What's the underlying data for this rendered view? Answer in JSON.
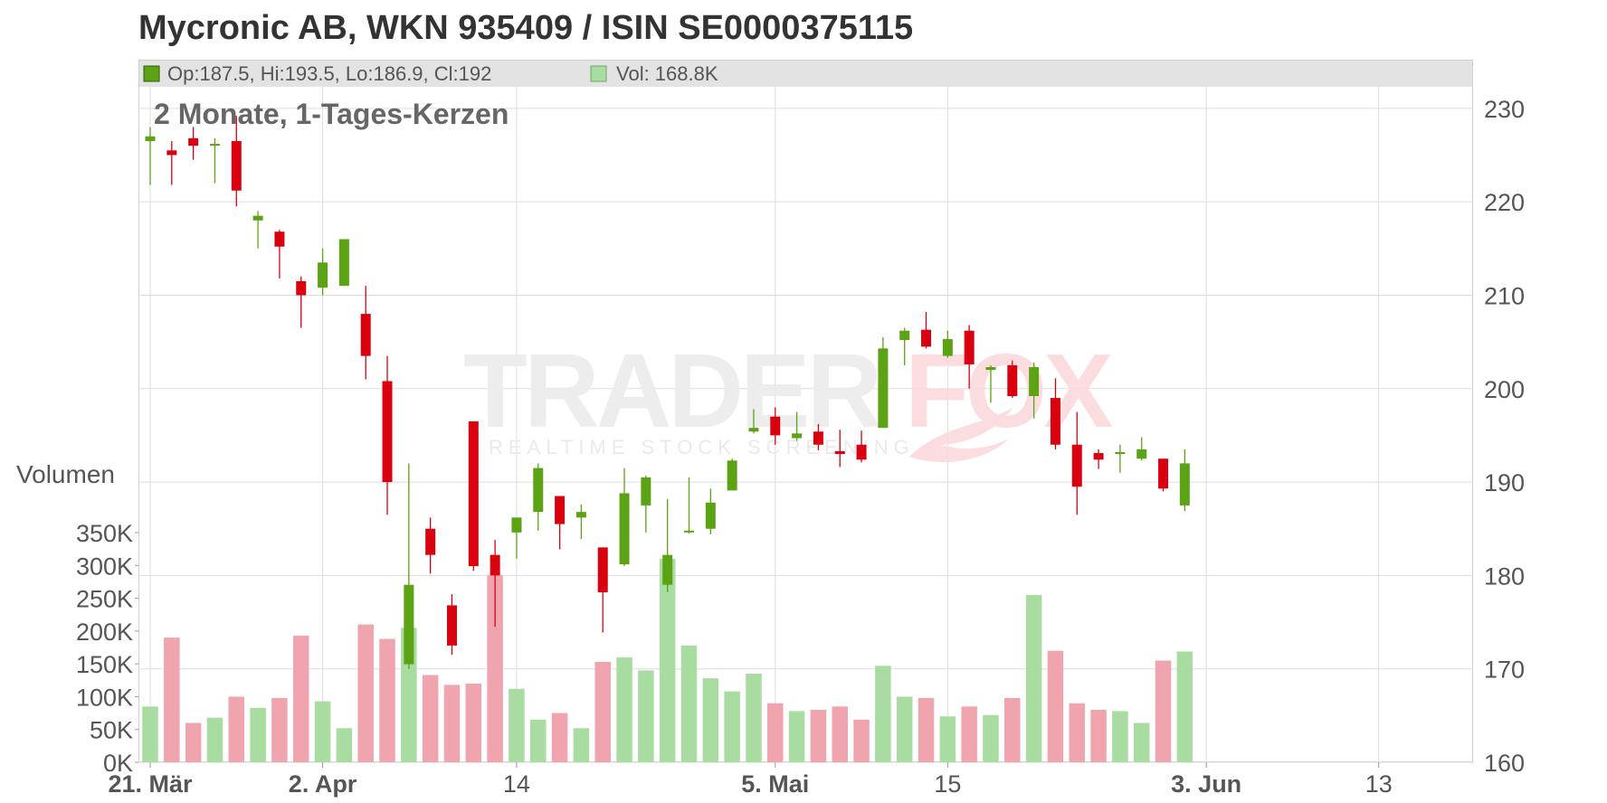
{
  "chart_data": {
    "type": "candlestick",
    "title": "Mycronic AB, WKN 935409 / ISIN SE0000375115",
    "subtitle": "2 Monate, 1-Tages-Kerzen",
    "info_bar": {
      "ohlc_text": "Op:187.5, Hi:193.5, Lo:186.9, Cl:192",
      "volume_text": "Vol: 168.8K"
    },
    "watermark": {
      "brand_left": "TRADER",
      "brand_right": "FOX",
      "tagline": "REALTIME STOCK SCREENING"
    },
    "price_axis": {
      "ticks": [
        "160",
        "170",
        "180",
        "190",
        "200",
        "210",
        "220",
        "230"
      ],
      "range": [
        160,
        232.5
      ]
    },
    "volume_axis": {
      "label": "Volumen",
      "ticks": [
        "0K",
        "50K",
        "100K",
        "150K",
        "200K",
        "250K",
        "300K",
        "350K"
      ],
      "range": [
        0,
        350000
      ]
    },
    "x_axis": {
      "labels": [
        {
          "text": "21. Mär",
          "bold": true,
          "day": 0
        },
        {
          "text": "2. Apr",
          "bold": true,
          "day": 8
        },
        {
          "text": "14",
          "bold": false,
          "day": 17
        },
        {
          "text": "5. Mai",
          "bold": true,
          "day": 29
        },
        {
          "text": "15",
          "bold": false,
          "day": 37
        },
        {
          "text": "3. Jun",
          "bold": true,
          "day": 49
        },
        {
          "text": "13",
          "bold": false,
          "day": 57
        }
      ],
      "total_slots": 62
    },
    "colors": {
      "up": "#5ba315",
      "down": "#d9000f",
      "vol_up": "#a8dca0",
      "vol_down": "#f0a4ae",
      "grid": "#dddddd"
    },
    "candles": [
      {
        "day": 0,
        "open": 226.5,
        "high": 228.0,
        "low": 221.8,
        "close": 227.0,
        "volume": 85000
      },
      {
        "day": 1,
        "open": 225.5,
        "high": 226.5,
        "low": 221.8,
        "close": 225.0,
        "volume": 190000
      },
      {
        "day": 2,
        "open": 226.8,
        "high": 228.0,
        "low": 224.5,
        "close": 226.0,
        "volume": 60000
      },
      {
        "day": 3,
        "open": 226.0,
        "high": 226.8,
        "low": 222.0,
        "close": 226.2,
        "volume": 68000
      },
      {
        "day": 4,
        "open": 226.5,
        "high": 229.2,
        "low": 219.5,
        "close": 221.2,
        "volume": 100000
      },
      {
        "day": 5,
        "open": 218.0,
        "high": 219.0,
        "low": 215.0,
        "close": 218.5,
        "volume": 83000
      },
      {
        "day": 6,
        "open": 216.8,
        "high": 217.0,
        "low": 211.8,
        "close": 215.2,
        "volume": 98000
      },
      {
        "day": 7,
        "open": 211.5,
        "high": 212.0,
        "low": 206.5,
        "close": 210.0,
        "volume": 193000
      },
      {
        "day": 8,
        "open": 210.8,
        "high": 215.0,
        "low": 210.0,
        "close": 213.5,
        "volume": 93000
      },
      {
        "day": 9,
        "open": 211.0,
        "high": 216.0,
        "low": 211.0,
        "close": 216.0,
        "volume": 52000
      },
      {
        "day": 10,
        "open": 208.0,
        "high": 211.0,
        "low": 201.0,
        "close": 203.5,
        "volume": 210000
      },
      {
        "day": 11,
        "open": 200.8,
        "high": 203.5,
        "low": 186.5,
        "close": 190.0,
        "volume": 188000
      },
      {
        "day": 12,
        "open": 170.5,
        "high": 192.0,
        "low": 170.0,
        "close": 179.0,
        "volume": 205000
      },
      {
        "day": 13,
        "open": 185.0,
        "high": 186.2,
        "low": 180.2,
        "close": 182.2,
        "volume": 133000
      },
      {
        "day": 14,
        "open": 176.8,
        "high": 178.0,
        "low": 171.5,
        "close": 172.5,
        "volume": 118000
      },
      {
        "day": 15,
        "open": 196.5,
        "high": 196.5,
        "low": 180.5,
        "close": 181.0,
        "volume": 120000
      },
      {
        "day": 16,
        "open": 182.2,
        "high": 183.8,
        "low": 174.5,
        "close": 180.0,
        "volume": 285000
      },
      {
        "day": 17,
        "open": 184.6,
        "high": 186.2,
        "low": 181.8,
        "close": 186.2,
        "volume": 112000
      },
      {
        "day": 18,
        "open": 186.8,
        "high": 192.0,
        "low": 184.8,
        "close": 191.5,
        "volume": 65000
      },
      {
        "day": 19,
        "open": 188.5,
        "high": 188.5,
        "low": 182.8,
        "close": 185.5,
        "volume": 75000
      },
      {
        "day": 20,
        "open": 186.2,
        "high": 187.6,
        "low": 183.9,
        "close": 186.8,
        "volume": 52000
      },
      {
        "day": 21,
        "open": 183.0,
        "high": 183.0,
        "low": 173.9,
        "close": 178.2,
        "volume": 153000
      },
      {
        "day": 22,
        "open": 181.2,
        "high": 191.5,
        "low": 181.0,
        "close": 188.8,
        "volume": 160000
      },
      {
        "day": 23,
        "open": 187.5,
        "high": 190.7,
        "low": 184.6,
        "close": 190.5,
        "volume": 140000
      },
      {
        "day": 24,
        "open": 179.0,
        "high": 188.2,
        "low": 178.2,
        "close": 182.2,
        "volume": 310000
      },
      {
        "day": 25,
        "open": 184.8,
        "high": 190.5,
        "low": 184.5,
        "close": 184.8,
        "volume": 178000
      },
      {
        "day": 26,
        "open": 185.0,
        "high": 189.3,
        "low": 184.4,
        "close": 187.8,
        "volume": 128000
      },
      {
        "day": 27,
        "open": 189.1,
        "high": 192.5,
        "low": 189.1,
        "close": 192.3,
        "volume": 108000
      },
      {
        "day": 28,
        "open": 195.4,
        "high": 197.8,
        "low": 195.2,
        "close": 195.8,
        "volume": 135000
      },
      {
        "day": 29,
        "open": 197.0,
        "high": 198.0,
        "low": 194.0,
        "close": 195.0,
        "volume": 90000
      },
      {
        "day": 30,
        "open": 194.7,
        "high": 197.5,
        "low": 194.4,
        "close": 195.2,
        "volume": 78000
      },
      {
        "day": 31,
        "open": 195.4,
        "high": 196.2,
        "low": 193.4,
        "close": 194.0,
        "volume": 80000
      },
      {
        "day": 32,
        "open": 193.3,
        "high": 195.6,
        "low": 191.6,
        "close": 193.0,
        "volume": 85000
      },
      {
        "day": 33,
        "open": 194.0,
        "high": 195.5,
        "low": 192.1,
        "close": 192.4,
        "volume": 65000
      },
      {
        "day": 34,
        "open": 195.8,
        "high": 205.5,
        "low": 195.8,
        "close": 204.3,
        "volume": 147000
      },
      {
        "day": 35,
        "open": 205.2,
        "high": 206.5,
        "low": 202.5,
        "close": 206.2,
        "volume": 100000
      },
      {
        "day": 36,
        "open": 206.3,
        "high": 208.2,
        "low": 204.3,
        "close": 204.5,
        "volume": 98000
      },
      {
        "day": 37,
        "open": 203.5,
        "high": 206.2,
        "low": 203.3,
        "close": 205.3,
        "volume": 70000
      },
      {
        "day": 38,
        "open": 206.2,
        "high": 206.8,
        "low": 200.0,
        "close": 202.6,
        "volume": 85000
      },
      {
        "day": 39,
        "open": 202.0,
        "high": 202.5,
        "low": 198.5,
        "close": 202.3,
        "volume": 72000
      },
      {
        "day": 40,
        "open": 202.5,
        "high": 203.0,
        "low": 199.0,
        "close": 199.2,
        "volume": 98000
      },
      {
        "day": 41,
        "open": 199.2,
        "high": 202.8,
        "low": 196.8,
        "close": 202.3,
        "volume": 255000
      },
      {
        "day": 42,
        "open": 199.0,
        "high": 201.1,
        "low": 193.5,
        "close": 194.0,
        "volume": 170000
      },
      {
        "day": 43,
        "open": 194.0,
        "high": 197.5,
        "low": 186.5,
        "close": 189.5,
        "volume": 90000
      },
      {
        "day": 44,
        "open": 193.1,
        "high": 193.5,
        "low": 191.4,
        "close": 192.4,
        "volume": 80000
      },
      {
        "day": 45,
        "open": 193.0,
        "high": 194.0,
        "low": 191.0,
        "close": 193.2,
        "volume": 78000
      },
      {
        "day": 46,
        "open": 192.5,
        "high": 194.8,
        "low": 192.3,
        "close": 193.5,
        "volume": 60000
      },
      {
        "day": 47,
        "open": 192.5,
        "high": 192.5,
        "low": 189.0,
        "close": 189.3,
        "volume": 155000
      },
      {
        "day": 48,
        "open": 187.5,
        "high": 193.5,
        "low": 186.9,
        "close": 192.0,
        "volume": 168800
      }
    ]
  }
}
